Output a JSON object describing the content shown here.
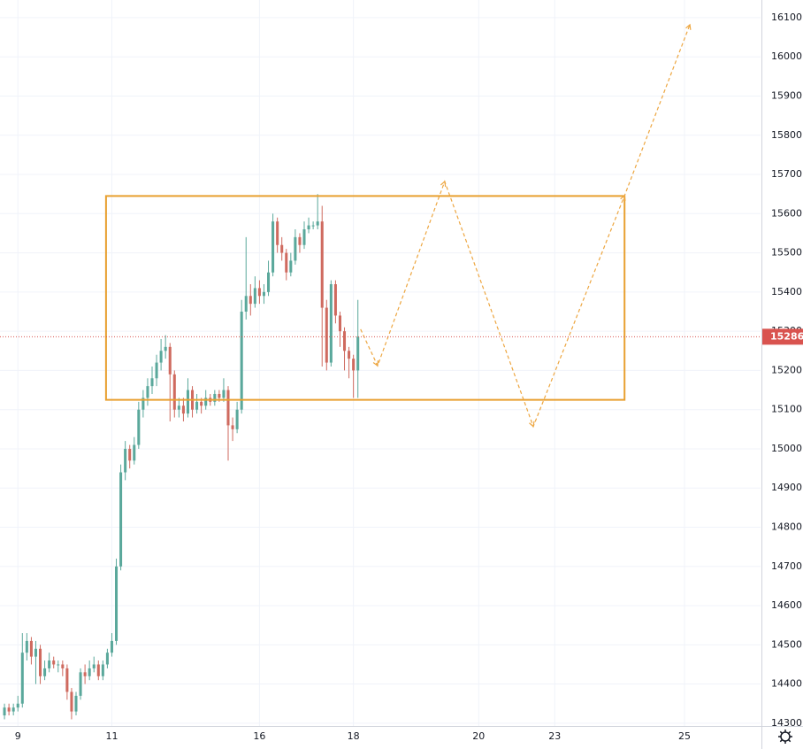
{
  "chart_data": {
    "type": "candlestick",
    "xlim": [
      -4,
      166
    ],
    "ylim": [
      14293,
      16145
    ],
    "xticks": [
      {
        "value": 0,
        "label": "9"
      },
      {
        "value": 21,
        "label": "11"
      },
      {
        "value": 54,
        "label": "16"
      },
      {
        "value": 75,
        "label": "18"
      },
      {
        "value": 103,
        "label": "20"
      },
      {
        "value": 120,
        "label": "23"
      },
      {
        "value": 149,
        "label": "25"
      }
    ],
    "yticks": [
      14300,
      14400,
      14500,
      14600,
      14700,
      14800,
      14900,
      15000,
      15100,
      15200,
      15300,
      15400,
      15500,
      15600,
      15700,
      15800,
      15900,
      16000,
      16100
    ],
    "grid": true,
    "up_color": "#5aa89b",
    "down_color": "#cf6a5f",
    "x": [
      -3,
      -2,
      -1,
      0,
      1,
      2,
      3,
      4,
      5,
      6,
      7,
      8,
      9,
      10,
      11,
      12,
      13,
      14,
      15,
      16,
      17,
      18,
      19,
      20,
      21,
      22,
      23,
      24,
      25,
      26,
      27,
      28,
      29,
      30,
      31,
      32,
      33,
      34,
      35,
      36,
      37,
      38,
      39,
      40,
      41,
      42,
      43,
      44,
      45,
      46,
      47,
      48,
      49,
      50,
      51,
      52,
      53,
      54,
      55,
      56,
      57,
      58,
      59,
      60,
      61,
      62,
      63,
      64,
      65,
      66,
      67,
      68,
      69,
      70,
      71,
      72,
      73,
      74,
      75,
      76
    ],
    "open": [
      14320,
      14340,
      14330,
      14340,
      14350,
      14480,
      14510,
      14470,
      14490,
      14420,
      14440,
      14460,
      14450,
      14450,
      14440,
      14380,
      14330,
      14370,
      14430,
      14420,
      14440,
      14450,
      14420,
      14450,
      14480,
      14510,
      14700,
      14940,
      15000,
      14970,
      15010,
      15100,
      15130,
      15160,
      15180,
      15220,
      15250,
      15260,
      15190,
      15100,
      15110,
      15090,
      15150,
      15100,
      15120,
      15110,
      15130,
      15120,
      15140,
      15130,
      15150,
      15060,
      15050,
      15100,
      15350,
      15390,
      15370,
      15410,
      15390,
      15400,
      15450,
      15580,
      15520,
      15500,
      15450,
      15480,
      15540,
      15520,
      15560,
      15570,
      15570,
      15580,
      15360,
      15220,
      15420,
      15340,
      15300,
      15250,
      15230,
      15200
    ],
    "high": [
      14350,
      14350,
      14350,
      14370,
      14530,
      14530,
      14520,
      14510,
      14500,
      14460,
      14480,
      14470,
      14460,
      14460,
      14450,
      14390,
      14380,
      14440,
      14450,
      14460,
      14470,
      14460,
      14460,
      14490,
      14530,
      14720,
      14960,
      15020,
      15010,
      15030,
      15120,
      15150,
      15180,
      15210,
      15240,
      15280,
      15290,
      15270,
      15200,
      15130,
      15130,
      15180,
      15160,
      15140,
      15130,
      15150,
      15140,
      15150,
      15150,
      15180,
      15160,
      15080,
      15120,
      15380,
      15540,
      15420,
      15440,
      15430,
      15420,
      15480,
      15600,
      15590,
      15540,
      15510,
      15500,
      15560,
      15550,
      15580,
      15590,
      15580,
      15650,
      15620,
      15380,
      15430,
      15430,
      15350,
      15310,
      15260,
      15240,
      15380
    ],
    "low": [
      14310,
      14320,
      14320,
      14330,
      14340,
      14460,
      14450,
      14400,
      14400,
      14410,
      14430,
      14440,
      14430,
      14420,
      14360,
      14310,
      14320,
      14360,
      14400,
      14410,
      14430,
      14410,
      14410,
      14440,
      14470,
      14500,
      14690,
      14920,
      14950,
      14960,
      15000,
      15080,
      15110,
      15140,
      15160,
      15200,
      15230,
      15070,
      15080,
      15080,
      15070,
      15080,
      15080,
      15090,
      15090,
      15100,
      15110,
      15110,
      15120,
      15120,
      14970,
      15020,
      15040,
      15090,
      15330,
      15340,
      15360,
      15370,
      15370,
      15390,
      15440,
      15500,
      15480,
      15430,
      15440,
      15470,
      15500,
      15510,
      15550,
      15560,
      15560,
      15210,
      15200,
      15210,
      15320,
      15260,
      15200,
      15180,
      15130,
      15130
    ],
    "close": [
      14340,
      14330,
      14340,
      14350,
      14480,
      14510,
      14470,
      14490,
      14420,
      14440,
      14460,
      14450,
      14450,
      14440,
      14380,
      14330,
      14370,
      14430,
      14420,
      14440,
      14450,
      14420,
      14450,
      14480,
      14510,
      14700,
      14940,
      15000,
      14970,
      15010,
      15100,
      15130,
      15160,
      15180,
      15220,
      15250,
      15260,
      15190,
      15100,
      15110,
      15090,
      15150,
      15100,
      15120,
      15110,
      15130,
      15120,
      15140,
      15130,
      15150,
      15060,
      15050,
      15100,
      15350,
      15390,
      15370,
      15410,
      15390,
      15400,
      15450,
      15580,
      15520,
      15500,
      15450,
      15480,
      15540,
      15520,
      15560,
      15570,
      15570,
      15580,
      15360,
      15220,
      15420,
      15340,
      15300,
      15250,
      15230,
      15200,
      15286
    ],
    "last_price": {
      "value": 15286,
      "label": "15286",
      "color": "#d9534f"
    },
    "rectangle": {
      "x": [
        19.7,
        135.6
      ],
      "y": [
        15125,
        15645
      ],
      "color": "#e8a030"
    },
    "projection": {
      "x": [
        76.6,
        80.4,
        95.4,
        115.2,
        135.6,
        150.2
      ],
      "y": [
        15305,
        15212,
        15682,
        15057,
        15646,
        16082
      ],
      "color": "#eda640"
    }
  }
}
